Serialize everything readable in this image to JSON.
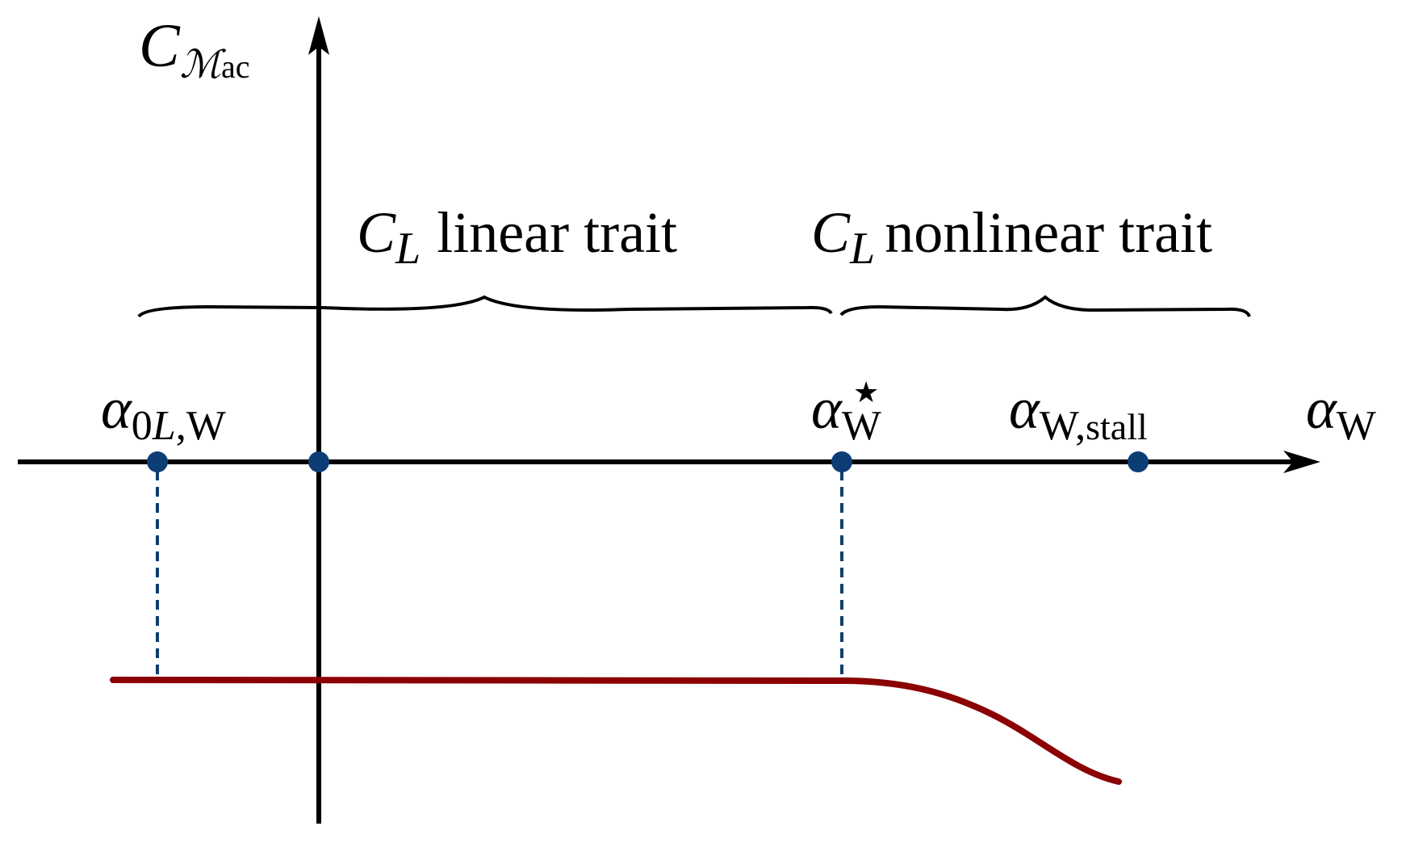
{
  "y_axis": {
    "symbol": "C",
    "symbol_sub": "ℳ",
    "symbol_subsub": "ac"
  },
  "x_axis": {
    "symbol": "α",
    "symbol_sub": "W"
  },
  "braces": {
    "linear": {
      "C": "C",
      "L": "L",
      "text": "linear trait"
    },
    "nonlinear": {
      "C": "C",
      "L": "L",
      "text": "nonlinear trait"
    }
  },
  "points": {
    "zero_lift": {
      "alpha": "α",
      "sub_0": "0",
      "sub_L": "L",
      "sub_rest": ",W"
    },
    "origin": {},
    "alpha_star": {
      "alpha": "α",
      "sub": "W",
      "sup": "★"
    },
    "alpha_stall": {
      "alpha": "α",
      "sub": "W,",
      "sub_small": "stall"
    }
  },
  "colors": {
    "axis": "#000000",
    "point": "#0d3d75",
    "dashed": "#123e6e",
    "curve": "#8b0000"
  }
}
